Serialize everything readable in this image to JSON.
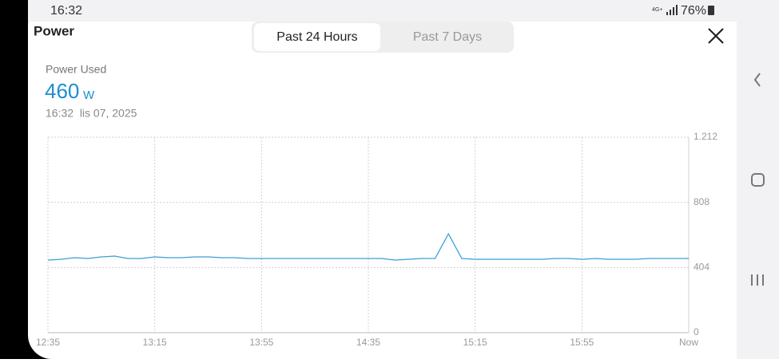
{
  "status_bar": {
    "time": "16:32",
    "network": "4G+",
    "battery": "76%"
  },
  "header": {
    "title": "Power",
    "tabs": [
      "Past 24 Hours",
      "Past 7 Days"
    ]
  },
  "summary": {
    "label": "Power Used",
    "value": "460",
    "unit": "W",
    "timestamp": "16:32  lis 07, 2025"
  },
  "chart_data": {
    "type": "line",
    "categories": [
      "12:35",
      null,
      null,
      null,
      null,
      null,
      null,
      null,
      "13:15",
      null,
      null,
      null,
      null,
      null,
      null,
      null,
      "13:55",
      null,
      null,
      null,
      null,
      null,
      null,
      null,
      "14:35",
      null,
      null,
      null,
      null,
      null,
      null,
      null,
      "15:15",
      null,
      null,
      null,
      null,
      null,
      null,
      null,
      "15:55",
      null,
      null,
      null,
      null,
      null,
      null,
      null,
      "Now"
    ],
    "values": [
      450,
      455,
      465,
      460,
      470,
      475,
      460,
      460,
      470,
      465,
      465,
      470,
      470,
      465,
      465,
      460,
      460,
      460,
      460,
      460,
      460,
      460,
      460,
      460,
      460,
      460,
      450,
      455,
      460,
      460,
      613,
      460,
      455,
      455,
      455,
      455,
      455,
      455,
      460,
      460,
      455,
      460,
      455,
      455,
      455,
      460,
      460,
      460,
      460
    ],
    "color": "#3a9fd6",
    "ylim": [
      0,
      1212
    ],
    "yticks": [
      0,
      404,
      808,
      {
        "value": 1212,
        "label": "1.212"
      }
    ],
    "grid": true
  }
}
